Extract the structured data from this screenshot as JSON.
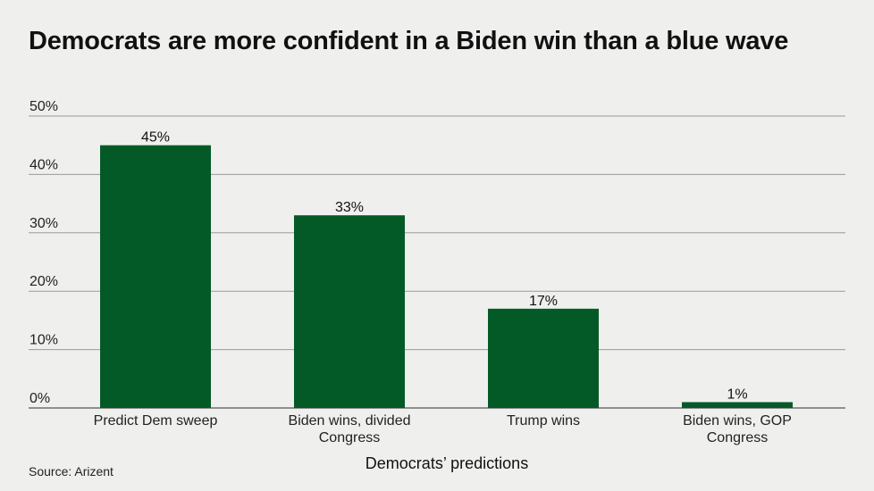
{
  "chart_data": {
    "type": "bar",
    "title": "Democrats are more confident in a Biden win than a blue wave",
    "categories": [
      [
        "Predict Dem sweep"
      ],
      [
        "Biden wins, divided",
        "Congress"
      ],
      [
        "Trump wins"
      ],
      [
        "Biden wins, GOP",
        "Congress"
      ]
    ],
    "values": [
      45,
      33,
      17,
      1
    ],
    "data_labels": [
      "45%",
      "33%",
      "17%",
      "1%"
    ],
    "xlabel": "Democrats’ predictions",
    "ylabel": "",
    "ylim": [
      0,
      50
    ],
    "yticks": [
      0,
      10,
      20,
      30,
      40,
      50
    ],
    "ytick_labels": [
      "0%",
      "10%",
      "20%",
      "30%",
      "40%",
      "50%"
    ],
    "grid": true,
    "bar_color": "#045a27",
    "gridline_color": "#9a9a9a"
  },
  "source": "Source: Arizent"
}
